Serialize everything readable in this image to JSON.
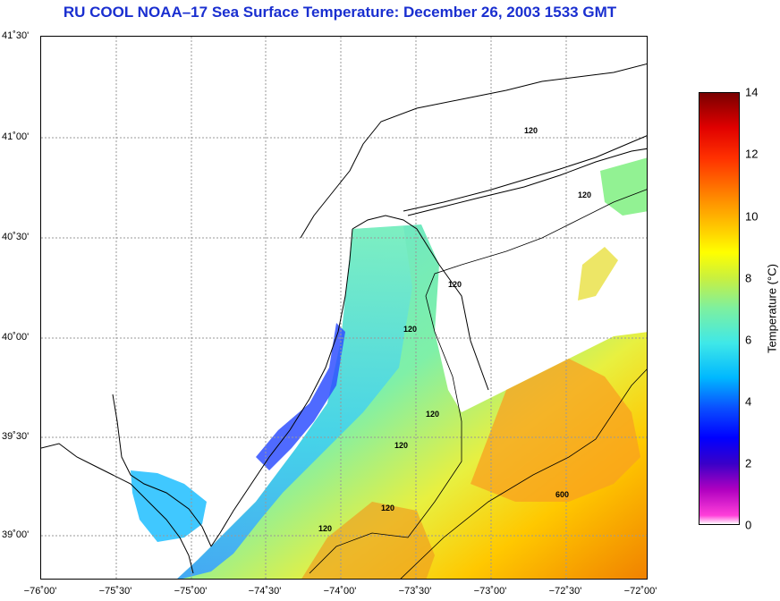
{
  "title": "RU COOL  NOAA–17  Sea Surface Temperature:  December 26, 2003 1533 GMT",
  "lat_labels": [
    "41˚30'",
    "41˚00'",
    "40˚30'",
    "40˚00'",
    "39˚30'",
    "39˚00'"
  ],
  "lon_labels": [
    "−76˚00'",
    "−75˚30'",
    "−75˚00'",
    "−74˚30'",
    "−74˚00'",
    "−73˚30'",
    "−73˚00'",
    "−72˚30'",
    "−72˚00'"
  ],
  "isobath_labels": [
    "120",
    "120",
    "120",
    "120",
    "120",
    "120",
    "120",
    "120",
    "600"
  ],
  "colorbar": {
    "label": "Temperature (°C)",
    "ticks": [
      "0",
      "2",
      "4",
      "6",
      "8",
      "10",
      "12",
      "14"
    ],
    "min": 0,
    "max": 14
  },
  "colors": {
    "title": "#1a2fd0",
    "land": "#ffffff",
    "grid": "#999999",
    "coast": "#000000"
  }
}
